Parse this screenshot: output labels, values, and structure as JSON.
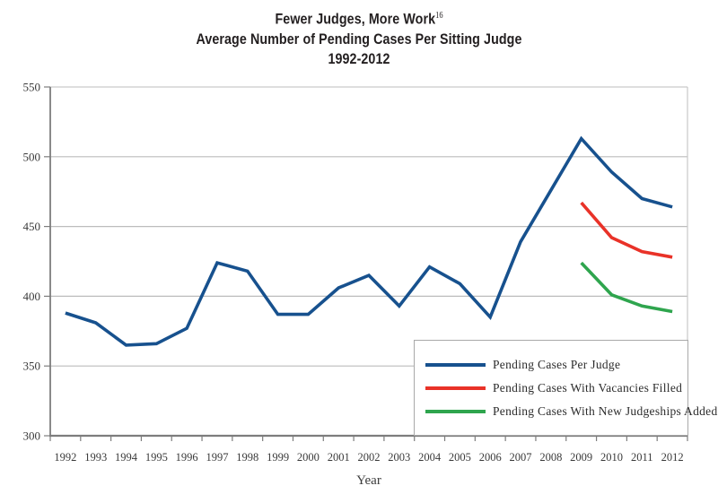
{
  "title": {
    "line1": "Fewer Judges, More Work",
    "superscript": "16",
    "line2": "Average Number of Pending Cases Per Sitting Judge",
    "line3": "1992-2012"
  },
  "chart_data": {
    "type": "line",
    "title": "Fewer Judges, More Work (16) — Average Number of Pending Cases Per Sitting Judge, 1992-2012",
    "xlabel": "Year",
    "ylabel": "",
    "ylim": [
      300,
      550
    ],
    "ytick_step": 50,
    "yticks": [
      "300",
      "350",
      "400",
      "450",
      "500",
      "550"
    ],
    "x_categories": [
      "1992",
      "1993",
      "1994",
      "1995",
      "1996",
      "1997",
      "1998",
      "1999",
      "2000",
      "2001",
      "2002",
      "2003",
      "2004",
      "2005",
      "2006",
      "2007",
      "2008",
      "2009",
      "2010",
      "2011",
      "2012"
    ],
    "grid": "horizontal",
    "legend_position": "lower-right",
    "series": [
      {
        "name": "Pending Cases Per Judge",
        "color": "#17518e",
        "start_year": "1992",
        "values": [
          388,
          381,
          365,
          366,
          377,
          424,
          418,
          387,
          387,
          406,
          415,
          393,
          421,
          409,
          385,
          439,
          476,
          513,
          489,
          470,
          464
        ]
      },
      {
        "name": "Pending Cases With Vacancies Filled",
        "color": "#e93228",
        "start_year": "2009",
        "values": [
          467,
          442,
          432,
          428
        ]
      },
      {
        "name": "Pending Cases With New Judgeships Added",
        "color": "#2fa54e",
        "start_year": "2009",
        "values": [
          424,
          401,
          393,
          389
        ]
      }
    ]
  },
  "colors": {
    "axis": "#7d7d7d",
    "gridline": "#bcbcbc",
    "plot_border": "#c9c9c9",
    "tick_label": "#3a3a3a",
    "legend_border": "#a9a9a9",
    "title_text": "#231f20"
  }
}
